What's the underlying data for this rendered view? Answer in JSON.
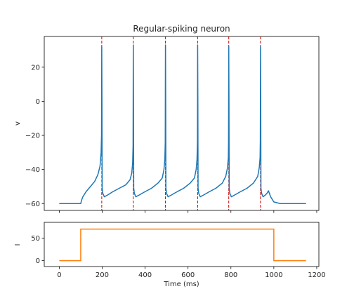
{
  "chart_data": [
    {
      "type": "line",
      "title": "Regular-spiking neuron",
      "xlabel": "",
      "ylabel": "v",
      "xlim": [
        -70,
        1210
      ],
      "ylim": [
        -64,
        38
      ],
      "xticks": [
        0,
        200,
        400,
        600,
        800,
        1000,
        1200
      ],
      "yticks": [
        -60,
        -40,
        -20,
        0,
        20
      ],
      "ytick_labels": [
        "−60",
        "−40",
        "−20",
        "0",
        "20"
      ],
      "spike_times": [
        198,
        345,
        495,
        645,
        790,
        938
      ],
      "series": [
        {
          "color": "#1f77b4",
          "x": [
            0,
            100,
            104,
            110,
            125,
            145,
            165,
            180,
            190,
            195,
            197,
            198,
            199,
            200,
            203,
            210,
            225,
            250,
            280,
            310,
            330,
            338,
            342,
            344,
            345,
            346,
            347,
            350,
            357,
            372,
            400,
            430,
            460,
            480,
            488,
            492,
            494,
            495,
            496,
            497,
            500,
            507,
            522,
            550,
            580,
            610,
            630,
            638,
            642,
            644,
            645,
            646,
            647,
            650,
            657,
            672,
            700,
            730,
            760,
            776,
            784,
            788,
            789,
            790,
            791,
            792,
            795,
            802,
            817,
            845,
            875,
            905,
            925,
            932,
            936,
            937,
            938,
            939,
            940,
            943,
            950,
            960,
            968,
            975,
            985,
            1000,
            1030,
            1060,
            1100,
            1150
          ],
          "y": [
            -60,
            -60,
            -58,
            -56,
            -53,
            -50,
            -47,
            -43,
            -38,
            -30,
            -20,
            32,
            0,
            -51,
            -54,
            -56,
            -55,
            -53,
            -51,
            -49,
            -46,
            -42,
            -36,
            -26,
            33,
            0,
            -51,
            -54,
            -56,
            -55,
            -53,
            -51,
            -48,
            -45,
            -40,
            -34,
            -24,
            33,
            0,
            -51,
            -54,
            -56,
            -55,
            -53,
            -51,
            -48,
            -45,
            -40,
            -34,
            -24,
            33,
            0,
            -51,
            -54,
            -56,
            -55,
            -53,
            -51,
            -48,
            -44,
            -39,
            -33,
            -23,
            32,
            0,
            -51,
            -54,
            -56,
            -55,
            -53,
            -51,
            -48,
            -44,
            -39,
            -33,
            -23,
            32,
            0,
            -51,
            -54,
            -56,
            -55,
            -54,
            -52.5,
            -56,
            -59,
            -60,
            -60,
            -60,
            -60
          ]
        }
      ]
    },
    {
      "type": "line",
      "title": "",
      "xlabel": "Time (ms)",
      "ylabel": "I",
      "xlim": [
        -70,
        1210
      ],
      "ylim": [
        -13,
        85
      ],
      "xticks": [
        0,
        200,
        400,
        600,
        800,
        1000,
        1200
      ],
      "yticks": [
        0,
        50
      ],
      "ytick_labels": [
        "0",
        "50"
      ],
      "series": [
        {
          "color": "#ff7f0e",
          "x": [
            0,
            100,
            100,
            1000,
            1000,
            1150
          ],
          "y": [
            0,
            0,
            70,
            70,
            0,
            0
          ]
        }
      ]
    }
  ]
}
